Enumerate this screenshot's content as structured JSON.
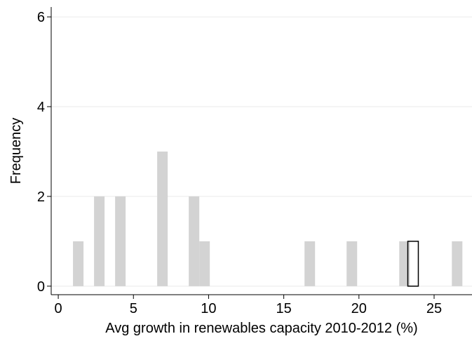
{
  "chart_data": {
    "type": "histogram",
    "x_label": "Avg growth in renewables capacity 2010-2012 (%)",
    "y_label": "Frequency",
    "bins": [
      0.98,
      1.68,
      2.38,
      3.08,
      3.78,
      4.48,
      5.18,
      5.88,
      6.58,
      7.28,
      7.98,
      8.68,
      9.38,
      10.08,
      10.78,
      11.48,
      12.18,
      12.88,
      13.58,
      14.28,
      14.98,
      15.68,
      16.38,
      17.08,
      17.78,
      18.48,
      19.18,
      19.88,
      20.58,
      21.28,
      21.98,
      22.68,
      23.38,
      24.08,
      24.78,
      25.48,
      26.18,
      26.88
    ],
    "values": [
      1,
      0,
      2,
      0,
      2,
      0,
      0,
      0,
      3,
      0,
      0,
      2,
      1,
      0,
      0,
      0,
      0,
      0,
      0,
      0,
      0,
      0,
      1,
      0,
      0,
      0,
      1,
      0,
      0,
      0,
      0,
      1,
      0,
      0,
      0,
      0,
      1
    ],
    "color": "#d3d3d3",
    "highlight": {
      "bins": [
        23.25,
        23.95
      ],
      "values": [
        1
      ],
      "edgecolor": "#000000"
    },
    "xlim": [
      -0.47,
      27.52
    ],
    "ylim": [
      -0.19,
      6.22
    ],
    "xticks": [
      0,
      5,
      10,
      15,
      20,
      25
    ],
    "yticks": [
      0,
      2,
      4,
      6
    ],
    "grid": true
  }
}
